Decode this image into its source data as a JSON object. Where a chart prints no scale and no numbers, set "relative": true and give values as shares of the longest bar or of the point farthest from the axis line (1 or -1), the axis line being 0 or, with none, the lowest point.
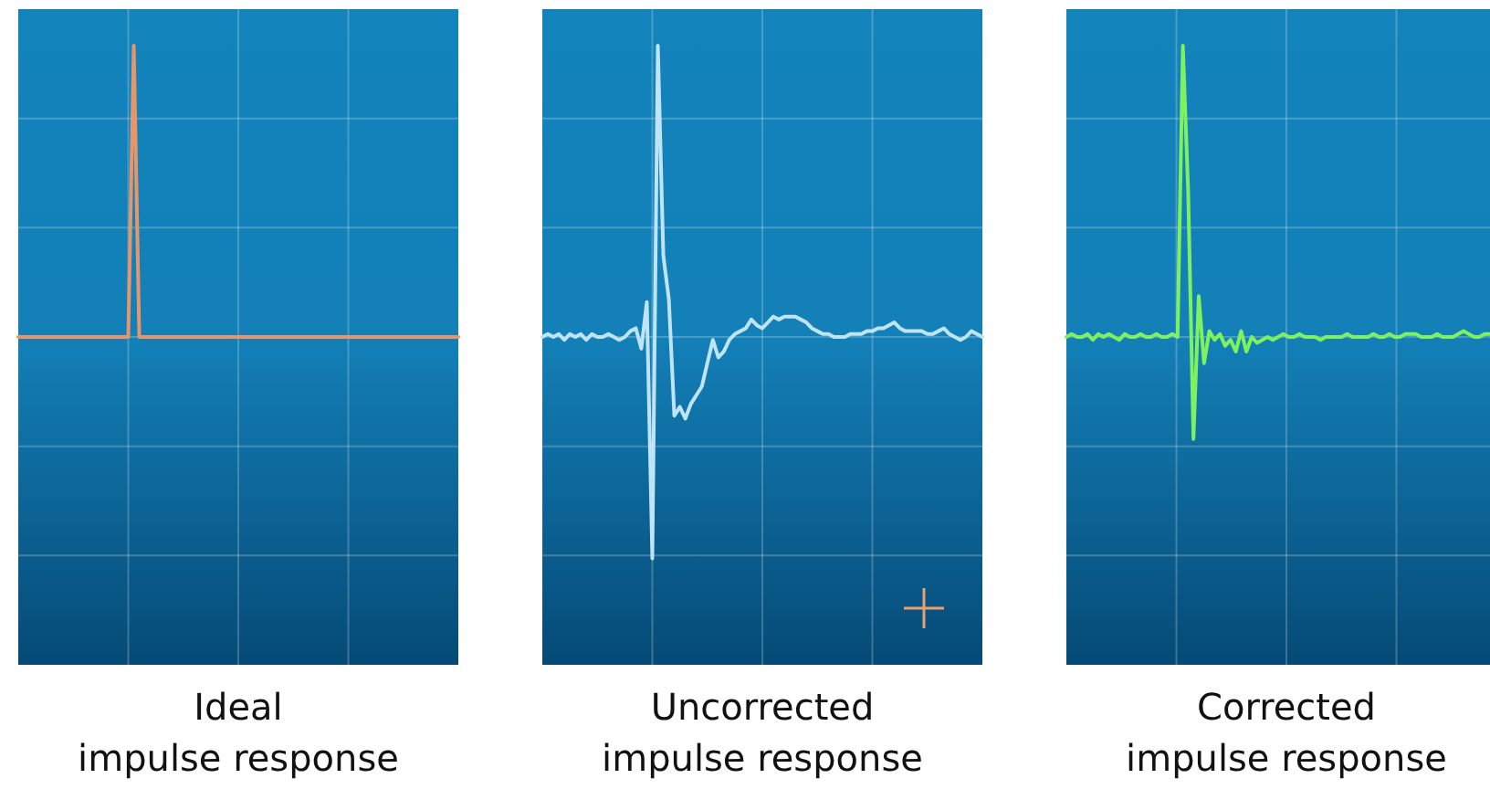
{
  "chart_data": [
    {
      "type": "line",
      "title": "Ideal\nimpulse response",
      "relative": true,
      "grid": true,
      "categories": [
        null,
        null,
        null,
        null,
        null,
        null,
        null,
        null,
        null,
        null,
        null,
        null,
        null,
        null,
        null,
        null,
        null,
        null,
        null,
        null,
        null,
        null,
        null,
        null,
        null,
        null,
        null,
        null,
        null,
        null,
        null,
        null,
        null,
        null,
        null,
        null,
        null,
        null,
        null,
        null,
        null,
        null,
        null,
        null,
        null,
        null,
        null,
        null,
        null,
        null,
        null,
        null,
        null,
        null,
        null,
        null,
        null,
        null,
        null,
        null,
        null,
        null,
        null,
        null,
        null,
        null,
        null,
        null,
        null,
        null,
        null,
        null,
        null,
        null,
        null,
        null,
        null,
        null,
        null,
        null,
        null
      ],
      "series": [
        {
          "color": "#e8956a",
          "values": [
            0,
            0,
            0,
            0,
            0,
            0,
            0,
            0,
            0,
            0,
            0,
            0,
            0,
            0,
            0,
            0,
            0,
            0,
            0,
            0,
            0,
            1,
            0,
            0,
            0,
            0,
            0,
            0,
            0,
            0,
            0,
            0,
            0,
            0,
            0,
            0,
            0,
            0,
            0,
            0,
            0,
            0,
            0,
            0,
            0,
            0,
            0,
            0,
            0,
            0,
            0,
            0,
            0,
            0,
            0,
            0,
            0,
            0,
            0,
            0,
            0,
            0,
            0,
            0,
            0,
            0,
            0,
            0,
            0,
            0,
            0,
            0,
            0,
            0,
            0,
            0,
            0,
            0,
            0,
            0,
            0
          ]
        }
      ]
    },
    {
      "type": "line",
      "title": "Uncorrected\nimpulse response",
      "relative": true,
      "grid": true,
      "categories": [
        null,
        null,
        null,
        null,
        null,
        null,
        null,
        null,
        null,
        null,
        null,
        null,
        null,
        null,
        null,
        null,
        null,
        null,
        null,
        null,
        null,
        null,
        null,
        null,
        null,
        null,
        null,
        null,
        null,
        null,
        null,
        null,
        null,
        null,
        null,
        null,
        null,
        null,
        null,
        null,
        null,
        null,
        null,
        null,
        null,
        null,
        null,
        null,
        null,
        null,
        null,
        null,
        null,
        null,
        null,
        null,
        null,
        null,
        null,
        null,
        null,
        null,
        null,
        null,
        null,
        null,
        null,
        null,
        null,
        null,
        null,
        null,
        null,
        null,
        null,
        null,
        null,
        null,
        null,
        null,
        null
      ],
      "series": [
        {
          "color": "#bfe4f7",
          "values": [
            0,
            0.01,
            0,
            0.01,
            -0.01,
            0.01,
            0,
            0.01,
            -0.01,
            0.01,
            0,
            0,
            0.01,
            0,
            -0.01,
            0,
            0.02,
            0.03,
            -0.04,
            0.12,
            -0.76,
            1,
            0.28,
            0.13,
            -0.27,
            -0.24,
            -0.28,
            -0.23,
            -0.2,
            -0.17,
            -0.09,
            -0.01,
            -0.07,
            -0.05,
            -0.01,
            0.01,
            0.02,
            0.03,
            0.06,
            0.04,
            0.03,
            0.05,
            0.07,
            0.06,
            0.07,
            0.07,
            0.07,
            0.06,
            0.05,
            0.03,
            0.02,
            0.01,
            0.01,
            0,
            0,
            0,
            0.01,
            0.01,
            0.01,
            0.02,
            0.02,
            0.03,
            0.03,
            0.04,
            0.05,
            0.03,
            0.02,
            0.02,
            0.02,
            0.02,
            0.01,
            0.01,
            0.02,
            0.03,
            0.01,
            0,
            -0.01,
            0,
            0.02,
            0.01,
            0
          ]
        }
      ]
    },
    {
      "type": "line",
      "title": "Corrected\nimpulse response",
      "relative": true,
      "grid": true,
      "categories": [
        null,
        null,
        null,
        null,
        null,
        null,
        null,
        null,
        null,
        null,
        null,
        null,
        null,
        null,
        null,
        null,
        null,
        null,
        null,
        null,
        null,
        null,
        null,
        null,
        null,
        null,
        null,
        null,
        null,
        null,
        null,
        null,
        null,
        null,
        null,
        null,
        null,
        null,
        null,
        null,
        null,
        null,
        null,
        null,
        null,
        null,
        null,
        null,
        null,
        null,
        null,
        null,
        null,
        null,
        null,
        null,
        null,
        null,
        null,
        null,
        null,
        null,
        null,
        null,
        null,
        null,
        null,
        null,
        null,
        null,
        null,
        null,
        null,
        null,
        null,
        null,
        null,
        null,
        null,
        null,
        null
      ],
      "series": [
        {
          "color": "#7ef25e",
          "values": [
            0,
            0.01,
            0,
            0,
            0.01,
            -0.01,
            0.01,
            0,
            0.01,
            0,
            -0.01,
            0.01,
            0,
            0,
            0.01,
            0,
            0,
            0.01,
            0,
            0,
            0.01,
            0,
            1,
            0.5,
            -0.35,
            0.14,
            -0.09,
            0.02,
            -0.01,
            0.01,
            -0.03,
            -0.01,
            -0.05,
            0.02,
            -0.05,
            0,
            -0.02,
            -0.01,
            0,
            -0.01,
            0,
            0.01,
            0,
            0,
            0.01,
            0,
            0,
            0,
            -0.01,
            0,
            0,
            0,
            0,
            0.01,
            0,
            0,
            0,
            0,
            0.01,
            0,
            0,
            0.01,
            0,
            0,
            0.01,
            0.01,
            0.01,
            0,
            0,
            0,
            0.01,
            0,
            0,
            0,
            0.01,
            0.02,
            0.01,
            0,
            0,
            0.01,
            0.01
          ]
        }
      ]
    }
  ]
}
